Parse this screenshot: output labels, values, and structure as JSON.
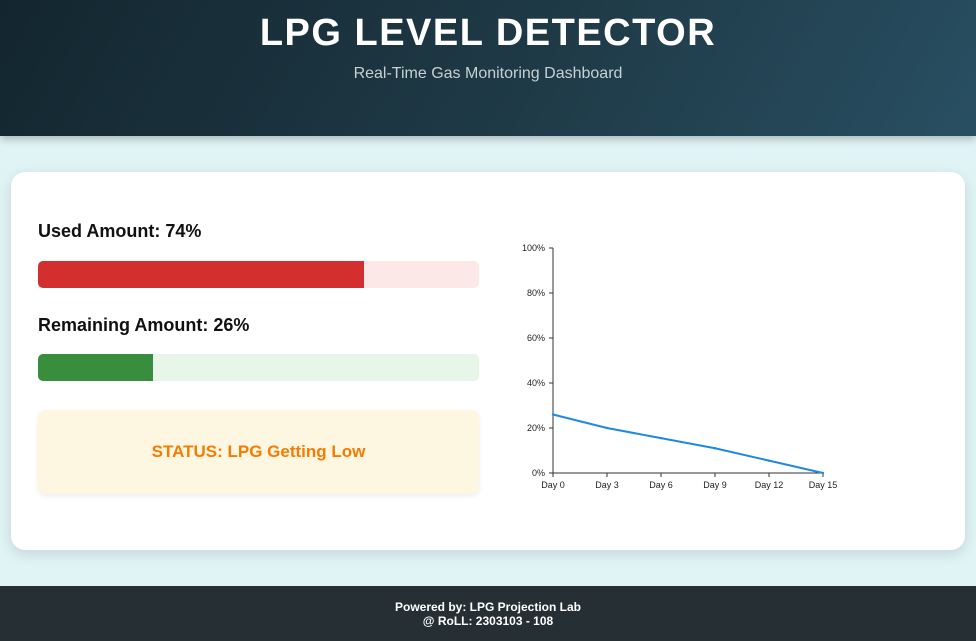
{
  "header": {
    "title": "LPG LEVEL DETECTOR",
    "subtitle": "Real-Time Gas Monitoring Dashboard"
  },
  "used": {
    "label": "Used Amount: 74%",
    "percent": 74,
    "fill_color": "#d32f2f",
    "track_color": "#fde8e8"
  },
  "remaining": {
    "label": "Remaining Amount: 26%",
    "percent": 26,
    "fill_color": "#388e3c",
    "track_color": "#e8f5e9"
  },
  "status": {
    "text": "STATUS: LPG Getting Low",
    "color": "#f57c00"
  },
  "chart_data": {
    "type": "line",
    "x": [
      "Day 0",
      "Day 3",
      "Day 6",
      "Day 9",
      "Day 12",
      "Day 15"
    ],
    "series": [
      {
        "values": [
          26,
          20,
          15.5,
          11,
          5.5,
          0
        ],
        "color": "#1e88e5"
      }
    ],
    "y_ticks": [
      "0%",
      "20%",
      "40%",
      "60%",
      "80%",
      "100%"
    ],
    "ylim": [
      0,
      100
    ],
    "grid": false,
    "title": "",
    "xlabel": "",
    "ylabel": ""
  },
  "footer": {
    "line1": "Powered by: LPG Projection Lab",
    "line2": "@ RoLL: 2303103 - 108"
  }
}
